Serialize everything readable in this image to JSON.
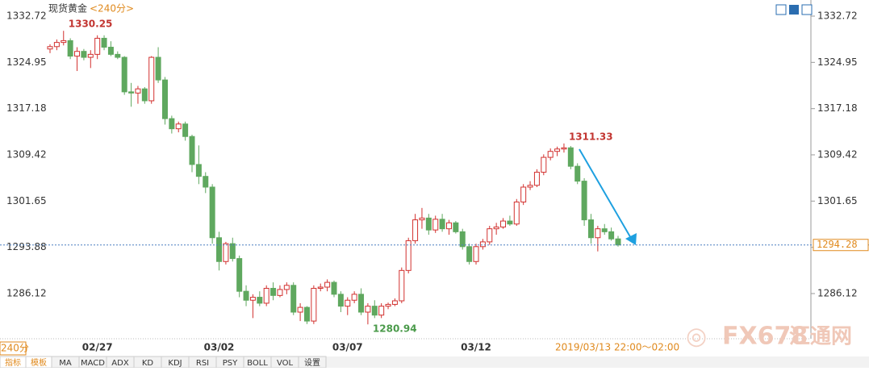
{
  "chart_data": {
    "type": "candlestick",
    "title": "现货黄金",
    "period": "<240分>",
    "categories": [
      null,
      null,
      null,
      null,
      null,
      null,
      null,
      "02/27",
      null,
      null,
      null,
      null,
      null,
      null,
      null,
      null,
      null,
      null,
      null,
      null,
      null,
      null,
      null,
      null,
      null,
      "03/02",
      null,
      null,
      null,
      null,
      null,
      null,
      null,
      null,
      null,
      null,
      null,
      null,
      null,
      null,
      null,
      null,
      null,
      null,
      "03/07",
      null,
      null,
      null,
      null,
      null,
      null,
      null,
      null,
      null,
      null,
      null,
      null,
      null,
      null,
      null,
      null,
      null,
      null,
      "03/12",
      null,
      null,
      null,
      null,
      null,
      null,
      null,
      null,
      null,
      null,
      null,
      null,
      null,
      null,
      null,
      null,
      null,
      null,
      null,
      null,
      null
    ],
    "open": [
      1327.2,
      1327.6,
      1328.3,
      1328.6,
      1326,
      1326.8,
      1325.8,
      1326.3,
      1329,
      1327.5,
      1326.3,
      1325.8,
      1320,
      1319.8,
      1320.5,
      1318.5,
      1325.8,
      1322,
      1315.5,
      1313.8,
      1314.6,
      1312.5,
      1307.8,
      1305.8,
      1304,
      1295.5,
      1291.5,
      1294.5,
      1292,
      1286.5,
      1285,
      1285.5,
      1284.5,
      1287,
      1285.8,
      1286.8,
      1287.5,
      1283,
      1283.8,
      1281.5,
      1287,
      1287.2,
      1288,
      1286,
      1284,
      1285,
      1286,
      1283,
      1284,
      1282.5,
      1284,
      1284.3,
      1284.9,
      1290,
      1295,
      1298.5,
      1298.8,
      1296.8,
      1298.6,
      1297,
      1298,
      1296.5,
      1294,
      1291.5,
      1294,
      1294.8,
      1297,
      1297.3,
      1298.3,
      1297.8,
      1301.5,
      1304,
      1304.3,
      1306.5,
      1309,
      1310,
      1310.4,
      1310.6,
      1307.5,
      1305,
      1298.5,
      1295.5,
      1297,
      1296.5,
      1295.3
    ],
    "high": [
      1328,
      1328.8,
      1330.25,
      1329,
      1327.5,
      1327.2,
      1327,
      1329.5,
      1329.5,
      1328.5,
      1326.8,
      1326,
      1321.5,
      1321,
      1320.8,
      1326,
      1327.5,
      1322.5,
      1316,
      1315,
      1315,
      1312.8,
      1311,
      1306.5,
      1304.5,
      1296.5,
      1294.8,
      1295.5,
      1292.5,
      1287.5,
      1286,
      1286.5,
      1287.5,
      1288,
      1287.5,
      1288,
      1288,
      1284.5,
      1284,
      1287.5,
      1287.8,
      1288.5,
      1288.3,
      1286.5,
      1285.5,
      1286.5,
      1287,
      1284.5,
      1285,
      1284.5,
      1284.6,
      1285.3,
      1290.5,
      1295.5,
      1299.5,
      1300.5,
      1299.5,
      1299.2,
      1299.5,
      1298.5,
      1298.3,
      1297,
      1294.5,
      1294.5,
      1295.3,
      1297.5,
      1298,
      1298.8,
      1299.2,
      1302,
      1304.5,
      1305,
      1307,
      1309.5,
      1310.5,
      1310.8,
      1311.33,
      1310.9,
      1308,
      1305.5,
      1299.5,
      1297.5,
      1297.8,
      1297.2,
      1295.8
    ],
    "low": [
      1326.5,
      1327,
      1327.8,
      1325.5,
      1323.5,
      1325.3,
      1324,
      1325.5,
      1327,
      1326,
      1325.5,
      1319.5,
      1317.5,
      1318,
      1318,
      1318,
      1321.5,
      1314.5,
      1313,
      1313.2,
      1311.8,
      1306.5,
      1304.5,
      1303,
      1294.5,
      1290,
      1291,
      1291.5,
      1285.5,
      1284,
      1282,
      1284,
      1284,
      1285,
      1285.5,
      1286,
      1282.5,
      1281.5,
      1281,
      1281,
      1286.5,
      1286.5,
      1285.5,
      1283,
      1282.5,
      1284.5,
      1282.5,
      1280.94,
      1282,
      1282,
      1283.5,
      1284,
      1284.5,
      1289.5,
      1294.5,
      1297,
      1296,
      1296.3,
      1296.5,
      1296,
      1296.2,
      1293.5,
      1291,
      1291,
      1293.5,
      1294.3,
      1296,
      1297,
      1297.5,
      1297.5,
      1301,
      1303.5,
      1304,
      1306,
      1308.5,
      1309.2,
      1309.8,
      1307,
      1304.5,
      1297.5,
      1294.5,
      1293.2,
      1296,
      1295,
      1294
    ],
    "close": [
      1327.6,
      1328.3,
      1328.6,
      1326,
      1326.8,
      1325.8,
      1326.3,
      1329,
      1327.5,
      1326.3,
      1325.8,
      1320,
      1319.8,
      1320.5,
      1318.5,
      1325.8,
      1322,
      1315.5,
      1313.8,
      1314.6,
      1312.5,
      1307.8,
      1305.8,
      1304,
      1295.5,
      1291.5,
      1294.5,
      1292,
      1286.5,
      1285,
      1285.5,
      1284.5,
      1287,
      1285.8,
      1286.8,
      1287.5,
      1283,
      1283.8,
      1281.5,
      1287,
      1287.2,
      1288,
      1286,
      1284,
      1285,
      1286,
      1283,
      1284,
      1282.5,
      1284,
      1284.3,
      1284.9,
      1290,
      1295,
      1298.5,
      1298.8,
      1296.8,
      1298.6,
      1297,
      1298,
      1296.5,
      1294,
      1291.5,
      1294,
      1294.8,
      1297,
      1297.3,
      1298.3,
      1297.8,
      1301.5,
      1304,
      1304.3,
      1306.5,
      1309,
      1310,
      1310.4,
      1310.6,
      1307.5,
      1305,
      1298.5,
      1295.5,
      1297,
      1296.5,
      1295.3,
      1294.28
    ],
    "up_color": "#d2312f",
    "down_color": "#5fa85f",
    "ylim": [
      1278.53,
      1334.75
    ],
    "yticks": [
      1332.72,
      1324.95,
      1317.18,
      1309.42,
      1301.65,
      1293.88,
      1286.12
    ],
    "annotations": [
      {
        "value": 1330.25,
        "color": "#c23531"
      },
      {
        "value": 1311.33,
        "color": "#c23531"
      },
      {
        "value": 1280.94,
        "color": "#4a9a4a"
      }
    ],
    "last_price": 1294.28,
    "time_range": "2019/03/13 22:00～02:00",
    "period_short": "240分",
    "tabs": [
      "指标",
      "模板",
      "MA",
      "MACD",
      "ADX",
      "KD",
      "KDJ",
      "RSI",
      "PSY",
      "BOLL",
      "VOL",
      "设置"
    ],
    "watermark": [
      "FX678",
      "汇通网"
    ]
  }
}
